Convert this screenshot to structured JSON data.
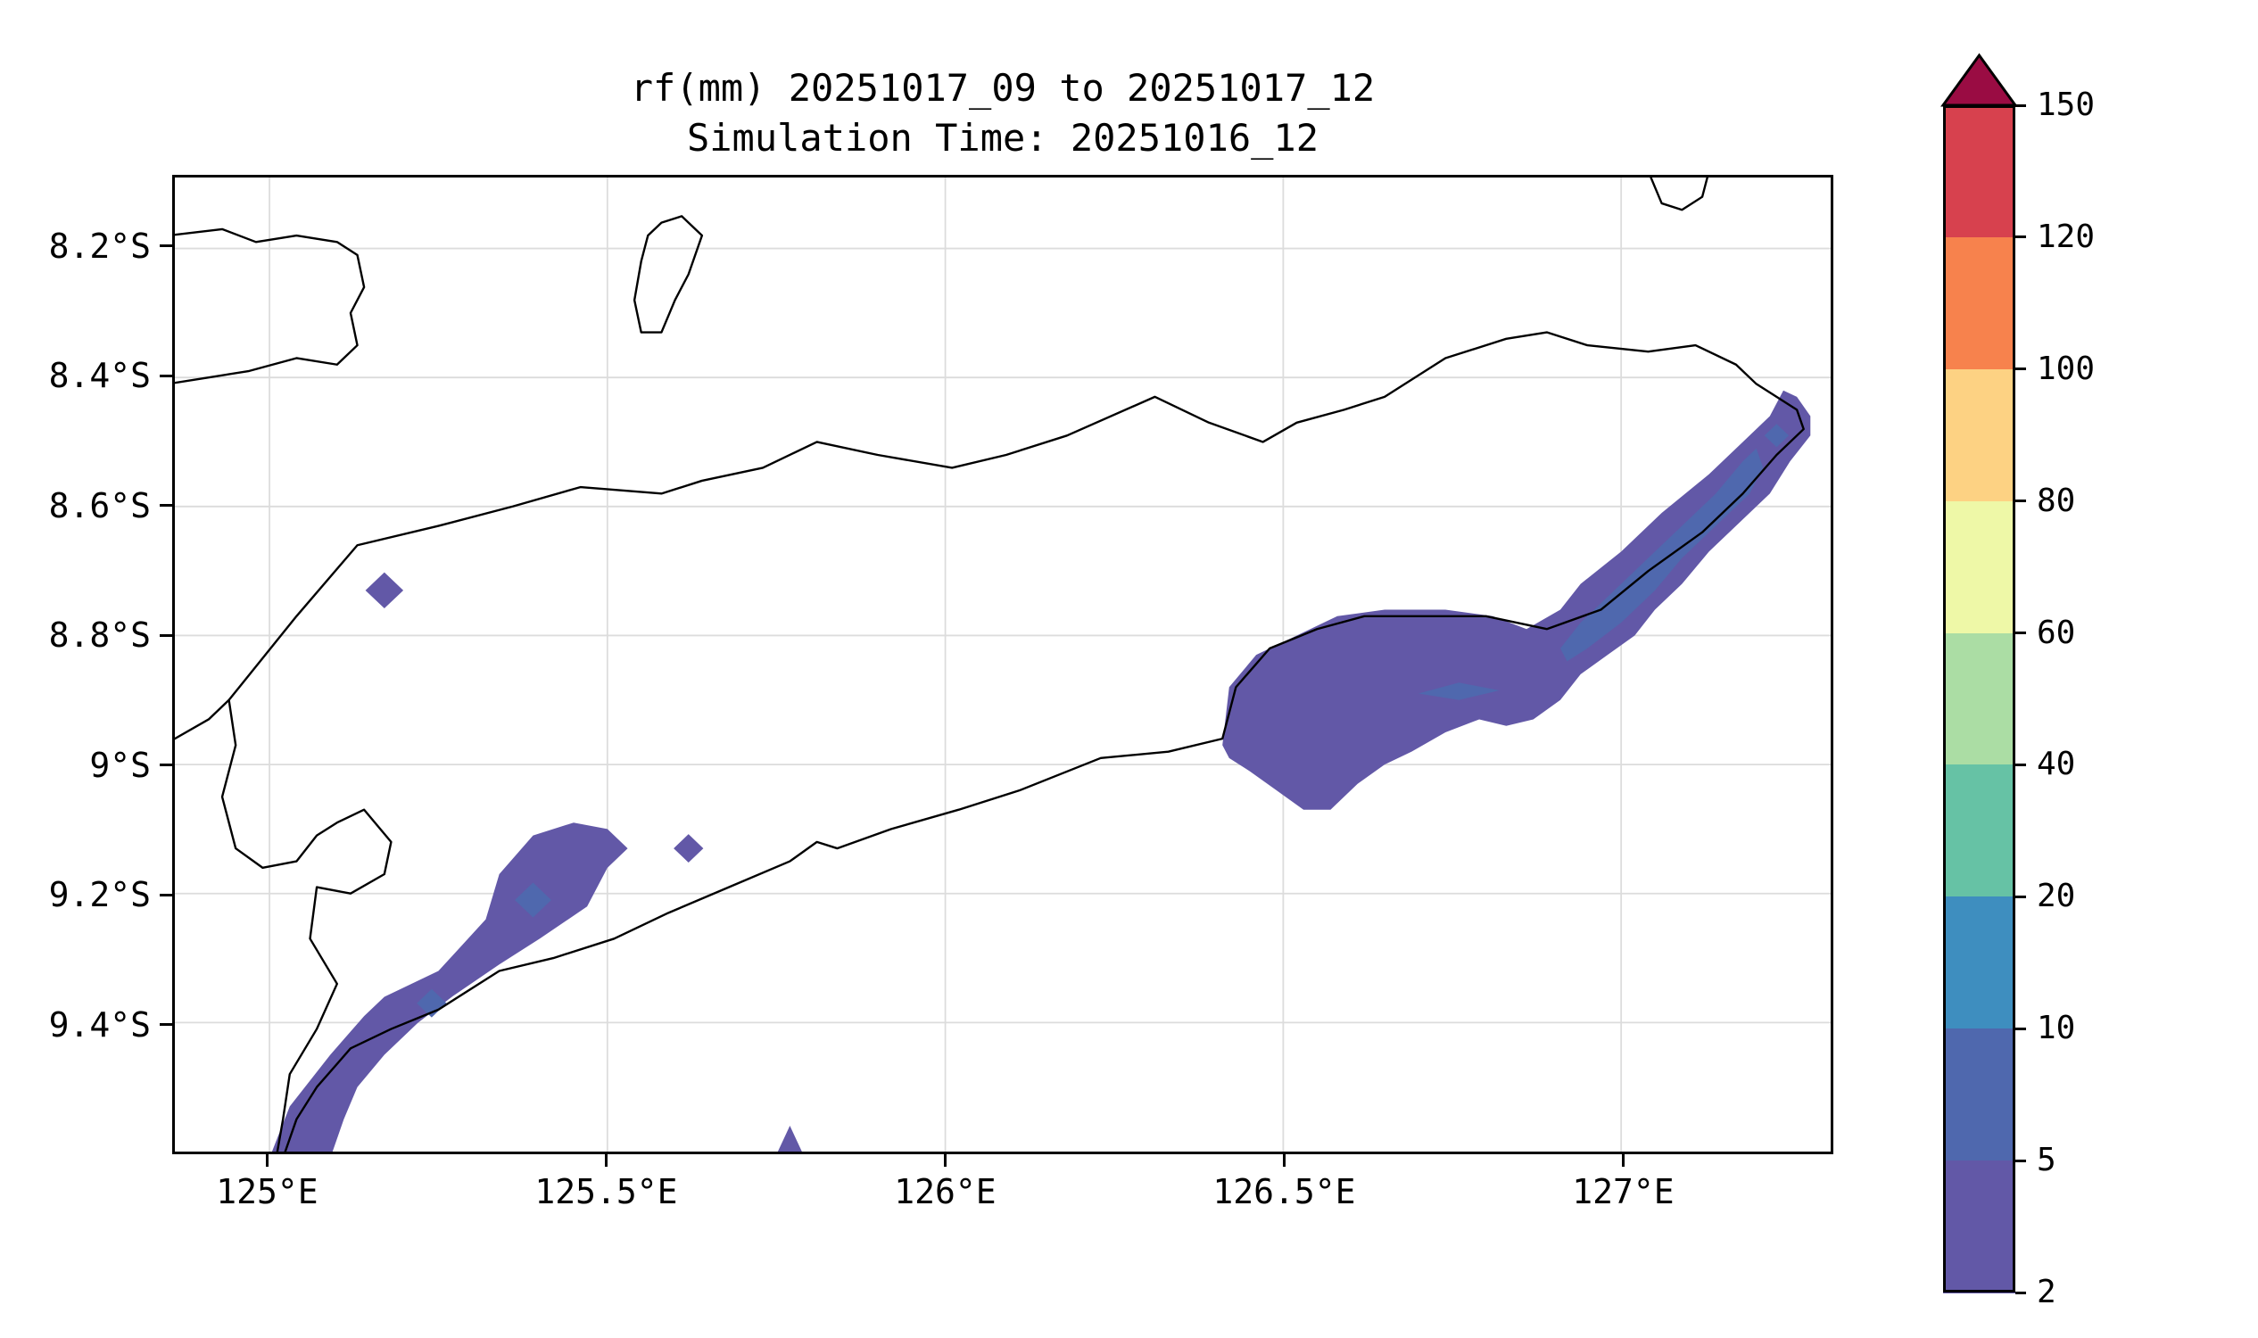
{
  "title": {
    "line1": "rf(mm) 20251017_09 to 20251017_12",
    "line2": "Simulation Time: 20251016_12"
  },
  "colorbar": {
    "tick_labels_top_to_bottom": [
      "150",
      "120",
      "100",
      "80",
      "60",
      "40",
      "20",
      "10",
      "5",
      "2"
    ],
    "segment_colors_top_to_bottom": [
      "#d7414e",
      "#f7824d",
      "#fdd283",
      "#eef8a7",
      "#abdda4",
      "#66c2a5",
      "#3e8ebf",
      "#4f68ae",
      "#6258a7"
    ],
    "over_arrow_color": "#9a0c43"
  },
  "chart_data": {
    "type": "heatmap",
    "subtype": "filled-contour-rainfall-map",
    "title": "rf(mm) 20251017_09 to 20251017_12",
    "subtitle": "Simulation Time: 20251016_12",
    "variable": "rainfall accumulation",
    "units": "mm",
    "valid_period": {
      "start": "20251017_09",
      "end": "20251017_12"
    },
    "simulation_time": "20251016_12",
    "lon_range": [
      124.86,
      127.31
    ],
    "lat_range_south": [
      8.09,
      9.6
    ],
    "grid": true,
    "grid_color": "#dcdcdc",
    "x_ticks": [
      {
        "lon": 125.0,
        "label": "125°E"
      },
      {
        "lon": 125.5,
        "label": "125.5°E"
      },
      {
        "lon": 126.0,
        "label": "126°E"
      },
      {
        "lon": 126.5,
        "label": "126.5°E"
      },
      {
        "lon": 127.0,
        "label": "127°E"
      }
    ],
    "y_ticks": [
      {
        "lat": 8.2,
        "label": "8.2°S"
      },
      {
        "lat": 8.4,
        "label": "8.4°S"
      },
      {
        "lat": 8.6,
        "label": "8.6°S"
      },
      {
        "lat": 8.8,
        "label": "8.8°S"
      },
      {
        "lat": 9.0,
        "label": "9°S"
      },
      {
        "lat": 9.2,
        "label": "9.2°S"
      },
      {
        "lat": 9.4,
        "label": "9.4°S"
      }
    ],
    "levels_mm": [
      2,
      5,
      10,
      20,
      40,
      60,
      80,
      100,
      120,
      150
    ],
    "level_colors_low_to_high": [
      "#6258a7",
      "#4f68ae",
      "#3e8ebf",
      "#66c2a5",
      "#abdda4",
      "#eef8a7",
      "#fdd283",
      "#f7824d",
      "#d7414e"
    ],
    "over_color": "#9a0c43",
    "rain_polygons": [
      {
        "name": "southwest-coastal-band",
        "level": "2-5",
        "color_index": 0,
        "points": [
          [
            125.0,
            9.61
          ],
          [
            125.03,
            9.53
          ],
          [
            125.09,
            9.45
          ],
          [
            125.14,
            9.39
          ],
          [
            125.17,
            9.36
          ],
          [
            125.25,
            9.32
          ],
          [
            125.32,
            9.24
          ],
          [
            125.34,
            9.17
          ],
          [
            125.39,
            9.11
          ],
          [
            125.45,
            9.09
          ],
          [
            125.5,
            9.1
          ],
          [
            125.53,
            9.13
          ],
          [
            125.5,
            9.16
          ],
          [
            125.47,
            9.22
          ],
          [
            125.4,
            9.27
          ],
          [
            125.34,
            9.31
          ],
          [
            125.27,
            9.36
          ],
          [
            125.22,
            9.4
          ],
          [
            125.17,
            9.45
          ],
          [
            125.13,
            9.5
          ],
          [
            125.11,
            9.55
          ],
          [
            125.09,
            9.61
          ]
        ]
      },
      {
        "name": "northeast-band",
        "level": "2-5",
        "color_index": 0,
        "points": [
          [
            126.41,
            8.97
          ],
          [
            126.42,
            8.88
          ],
          [
            126.46,
            8.83
          ],
          [
            126.52,
            8.8
          ],
          [
            126.58,
            8.77
          ],
          [
            126.65,
            8.76
          ],
          [
            126.74,
            8.76
          ],
          [
            126.81,
            8.77
          ],
          [
            126.86,
            8.79
          ],
          [
            126.91,
            8.76
          ],
          [
            126.94,
            8.72
          ],
          [
            127.0,
            8.67
          ],
          [
            127.06,
            8.61
          ],
          [
            127.13,
            8.55
          ],
          [
            127.18,
            8.5
          ],
          [
            127.22,
            8.46
          ],
          [
            127.24,
            8.42
          ],
          [
            127.26,
            8.43
          ],
          [
            127.28,
            8.46
          ],
          [
            127.28,
            8.49
          ],
          [
            127.25,
            8.53
          ],
          [
            127.22,
            8.58
          ],
          [
            127.17,
            8.63
          ],
          [
            127.13,
            8.67
          ],
          [
            127.09,
            8.72
          ],
          [
            127.05,
            8.76
          ],
          [
            127.02,
            8.8
          ],
          [
            126.98,
            8.83
          ],
          [
            126.94,
            8.86
          ],
          [
            126.91,
            8.9
          ],
          [
            126.87,
            8.93
          ],
          [
            126.83,
            8.94
          ],
          [
            126.79,
            8.93
          ],
          [
            126.74,
            8.95
          ],
          [
            126.69,
            8.98
          ],
          [
            126.65,
            9.0
          ],
          [
            126.61,
            9.03
          ],
          [
            126.57,
            9.07
          ],
          [
            126.53,
            9.07
          ],
          [
            126.49,
            9.04
          ],
          [
            126.45,
            9.01
          ],
          [
            126.42,
            8.99
          ]
        ]
      },
      {
        "name": "northeast-inner-band",
        "level": "5-10",
        "color_index": 1,
        "points": [
          [
            126.91,
            8.82
          ],
          [
            126.94,
            8.78
          ],
          [
            126.99,
            8.73
          ],
          [
            127.04,
            8.68
          ],
          [
            127.09,
            8.63
          ],
          [
            127.14,
            8.58
          ],
          [
            127.18,
            8.53
          ],
          [
            127.2,
            8.51
          ],
          [
            127.21,
            8.54
          ],
          [
            127.19,
            8.58
          ],
          [
            127.14,
            8.63
          ],
          [
            127.09,
            8.68
          ],
          [
            127.05,
            8.73
          ],
          [
            127.0,
            8.78
          ],
          [
            126.95,
            8.82
          ],
          [
            126.92,
            8.84
          ]
        ]
      },
      {
        "name": "northeast-sliver",
        "level": "5-10",
        "color_index": 1,
        "points": [
          [
            126.7,
            8.89
          ],
          [
            126.76,
            8.873
          ],
          [
            126.82,
            8.885
          ],
          [
            126.76,
            8.9
          ]
        ]
      },
      {
        "name": "south-edge-spot",
        "level": "2-5",
        "color_index": 0,
        "points": [
          [
            125.75,
            9.605
          ],
          [
            125.77,
            9.56
          ],
          [
            125.79,
            9.605
          ]
        ]
      }
    ],
    "rain_diamonds": [
      {
        "name": "north-coast-spot",
        "level": "2-5",
        "color_index": 0,
        "center": [
          125.17,
          8.73
        ],
        "r": 0.028
      },
      {
        "name": "central-south-spot",
        "level": "2-5",
        "color_index": 0,
        "center": [
          125.62,
          9.13
        ],
        "r": 0.022
      },
      {
        "name": "sw-band-core-1",
        "level": "5-10",
        "color_index": 1,
        "center": [
          125.39,
          9.21
        ],
        "r": 0.027
      },
      {
        "name": "sw-band-core-2",
        "level": "5-10",
        "color_index": 1,
        "center": [
          125.24,
          9.37
        ],
        "r": 0.022
      },
      {
        "name": "east-tip-core",
        "level": "5-10",
        "color_index": 1,
        "center": [
          127.23,
          8.49
        ],
        "r": 0.018
      }
    ],
    "coastlines": [
      {
        "name": "timor-main",
        "closed": false,
        "points": [
          [
            124.86,
            8.96
          ],
          [
            124.91,
            8.93
          ],
          [
            124.94,
            8.9
          ],
          [
            125.04,
            8.77
          ],
          [
            125.13,
            8.66
          ],
          [
            125.25,
            8.63
          ],
          [
            125.36,
            8.6
          ],
          [
            125.46,
            8.57
          ],
          [
            125.58,
            8.58
          ],
          [
            125.64,
            8.56
          ],
          [
            125.73,
            8.54
          ],
          [
            125.81,
            8.5
          ],
          [
            125.9,
            8.52
          ],
          [
            126.01,
            8.54
          ],
          [
            126.09,
            8.52
          ],
          [
            126.18,
            8.49
          ],
          [
            126.31,
            8.43
          ],
          [
            126.39,
            8.47
          ],
          [
            126.47,
            8.5
          ],
          [
            126.52,
            8.47
          ],
          [
            126.59,
            8.45
          ],
          [
            126.65,
            8.43
          ],
          [
            126.74,
            8.37
          ],
          [
            126.83,
            8.34
          ],
          [
            126.89,
            8.33
          ],
          [
            126.95,
            8.35
          ],
          [
            127.04,
            8.36
          ],
          [
            127.11,
            8.35
          ],
          [
            127.17,
            8.38
          ],
          [
            127.2,
            8.41
          ],
          [
            127.26,
            8.45
          ],
          [
            127.27,
            8.48
          ],
          [
            127.23,
            8.52
          ],
          [
            127.18,
            8.58
          ],
          [
            127.12,
            8.64
          ],
          [
            127.04,
            8.7
          ],
          [
            126.97,
            8.76
          ],
          [
            126.89,
            8.79
          ],
          [
            126.8,
            8.77
          ],
          [
            126.71,
            8.77
          ],
          [
            126.62,
            8.77
          ],
          [
            126.55,
            8.79
          ],
          [
            126.48,
            8.82
          ],
          [
            126.43,
            8.88
          ],
          [
            126.41,
            8.96
          ],
          [
            126.33,
            8.98
          ],
          [
            126.23,
            8.99
          ],
          [
            126.11,
            9.04
          ],
          [
            126.02,
            9.07
          ],
          [
            125.92,
            9.1
          ],
          [
            125.84,
            9.13
          ],
          [
            125.81,
            9.12
          ],
          [
            125.77,
            9.15
          ],
          [
            125.68,
            9.19
          ],
          [
            125.59,
            9.23
          ],
          [
            125.51,
            9.27
          ],
          [
            125.42,
            9.3
          ],
          [
            125.34,
            9.32
          ],
          [
            125.25,
            9.38
          ],
          [
            125.18,
            9.41
          ],
          [
            125.12,
            9.44
          ],
          [
            125.07,
            9.5
          ],
          [
            125.04,
            9.55
          ],
          [
            125.02,
            9.61
          ]
        ]
      },
      {
        "name": "west-timor-coast",
        "closed": false,
        "points": [
          [
            124.94,
            8.9
          ],
          [
            124.95,
            8.97
          ],
          [
            124.93,
            9.05
          ],
          [
            124.95,
            9.13
          ],
          [
            124.99,
            9.16
          ],
          [
            125.04,
            9.15
          ],
          [
            125.07,
            9.11
          ],
          [
            125.1,
            9.09
          ],
          [
            125.14,
            9.07
          ],
          [
            125.18,
            9.12
          ],
          [
            125.17,
            9.17
          ],
          [
            125.12,
            9.2
          ],
          [
            125.07,
            9.19
          ],
          [
            125.06,
            9.27
          ],
          [
            125.1,
            9.34
          ],
          [
            125.07,
            9.41
          ],
          [
            125.03,
            9.48
          ],
          [
            125.02,
            9.55
          ],
          [
            125.01,
            9.61
          ]
        ]
      },
      {
        "name": "alor-island",
        "closed": false,
        "points": [
          [
            124.85,
            8.18
          ],
          [
            124.93,
            8.17
          ],
          [
            124.98,
            8.19
          ],
          [
            125.04,
            8.18
          ],
          [
            125.1,
            8.19
          ],
          [
            125.13,
            8.21
          ],
          [
            125.14,
            8.26
          ],
          [
            125.12,
            8.3
          ],
          [
            125.13,
            8.35
          ],
          [
            125.1,
            8.38
          ],
          [
            125.04,
            8.37
          ],
          [
            124.97,
            8.39
          ],
          [
            124.91,
            8.4
          ],
          [
            124.85,
            8.41
          ]
        ]
      },
      {
        "name": "atauro-island",
        "closed": true,
        "points": [
          [
            125.58,
            8.16
          ],
          [
            125.61,
            8.15
          ],
          [
            125.64,
            8.18
          ],
          [
            125.62,
            8.24
          ],
          [
            125.6,
            8.28
          ],
          [
            125.58,
            8.33
          ],
          [
            125.55,
            8.33
          ],
          [
            125.54,
            8.28
          ],
          [
            125.55,
            8.22
          ],
          [
            125.56,
            8.18
          ]
        ]
      },
      {
        "name": "wetar-corner",
        "closed": false,
        "points": [
          [
            127.04,
            8.08
          ],
          [
            127.06,
            8.13
          ],
          [
            127.09,
            8.14
          ],
          [
            127.12,
            8.12
          ],
          [
            127.13,
            8.08
          ]
        ]
      }
    ]
  }
}
